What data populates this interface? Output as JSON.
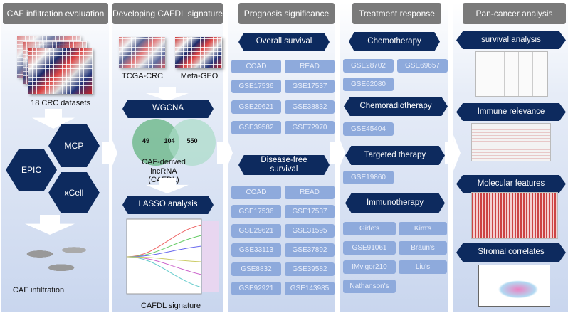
{
  "panels": {
    "caf": {
      "title": "CAF infiltration evaluation",
      "datasets": "18 CRC datasets",
      "methods": [
        "MCP",
        "EPIC",
        "xCell"
      ],
      "result": "CAF infiltration"
    },
    "cafdl": {
      "title": "Developing CAFDL signature",
      "cohorts": [
        "TCGA-CRC",
        "Meta-GEO"
      ],
      "wgcna": "WGCNA",
      "venn": [
        "49",
        "104",
        "550"
      ],
      "venn_label": "CAF-derived lncRNA\n(CAFDL)",
      "lasso": "LASSO analysis",
      "result": "CAFDL signature"
    },
    "prognosis": {
      "title": "Prognosis significance",
      "os": {
        "label": "Overall survival",
        "items": [
          "COAD",
          "READ",
          "GSE17536",
          "GSE17537",
          "GSE29621",
          "GSE38832",
          "GSE39582",
          "GSE72970"
        ]
      },
      "dfs": {
        "label": "Disease-free survival",
        "items": [
          "COAD",
          "READ",
          "GSE17536",
          "GSE17537",
          "GSE29621",
          "GSE31595",
          "GSE33113",
          "GSE37892",
          "GSE8832",
          "GSE39582",
          "GSE92921",
          "GSE143985"
        ]
      }
    },
    "treatment": {
      "title": "Treatment response",
      "chemo": {
        "label": "Chemotherapy",
        "items": [
          "GSE28702",
          "GSE69657",
          "GSE62080"
        ]
      },
      "chemorad": {
        "label": "Chemoradiotherapy",
        "items": [
          "GSE45404"
        ]
      },
      "targeted": {
        "label": "Targeted therapy",
        "items": [
          "GSE19860"
        ]
      },
      "immuno": {
        "label": "Immunotherapy",
        "items": [
          "Gide's",
          "Kim's",
          "GSE91061",
          "Braun's",
          "IMvigor210",
          "Liu's",
          "Nathanson's"
        ]
      }
    },
    "pancancer": {
      "title": "Pan-cancer analysis",
      "sections": [
        "survival analysis",
        "Immune relevance",
        "Molecular features",
        "Stromal correlates"
      ]
    }
  },
  "colors": {
    "header": "#7a7a7a",
    "navy": "#0d2a5e",
    "cell": "#8eaadc"
  }
}
